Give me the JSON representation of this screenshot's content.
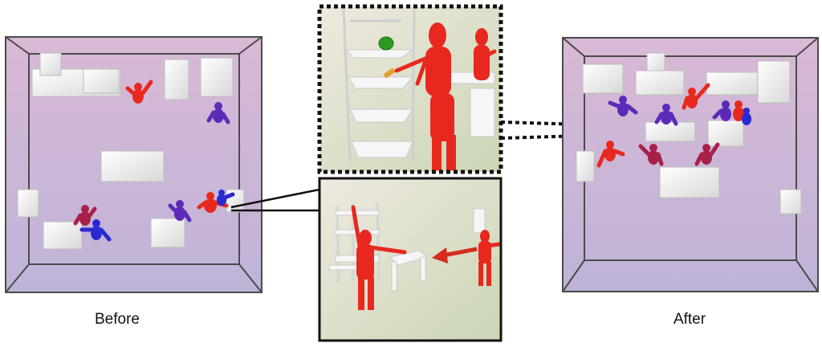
{
  "captions": {
    "before": "Before",
    "after": "After"
  },
  "colors": {
    "room_gradient_top": "#d9b9d6",
    "room_gradient_bottom": "#bfb3d8",
    "zoom_gradient_top": "#efe9df",
    "zoom_gradient_bottom": "#cbd6b5",
    "human_red": "#e8281e",
    "human_purple": "#5b2bb8",
    "human_blue": "#2a2ad0",
    "human_maroon": "#a8204a",
    "furniture": "#f4f4f4",
    "plant_green": "#2f9a22",
    "frame_dark": "#222222"
  },
  "icons": {
    "human": "human-figure-icon",
    "arrow": "red-arrow-icon",
    "plant": "plant-icon"
  }
}
